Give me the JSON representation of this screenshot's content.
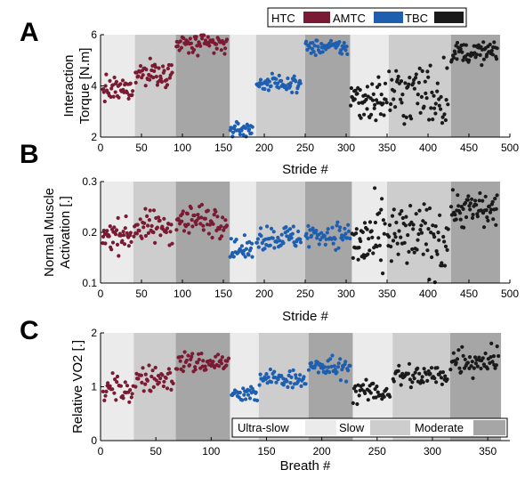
{
  "legend_top": {
    "items": [
      {
        "label": "HTC",
        "color": "#7a1a33"
      },
      {
        "label": "AMTC",
        "color": "#1f5fb0"
      },
      {
        "label": "TBC",
        "color": "#1a1a1a"
      }
    ]
  },
  "legend_bottom": {
    "items": [
      {
        "label": "Ultra-slow",
        "color": "#ebebeb"
      },
      {
        "label": "Slow",
        "color": "#cdcdcd"
      },
      {
        "label": "Moderate",
        "color": "#a6a6a6"
      }
    ]
  },
  "chart_data": [
    {
      "panel": "A",
      "type": "scatter",
      "xlabel": "Stride #",
      "ylabel": [
        "Interaction",
        "Torque [N.m]"
      ],
      "xlim": [
        0,
        500
      ],
      "ylim": [
        2,
        6
      ],
      "xticks": [
        0,
        50,
        100,
        150,
        200,
        250,
        300,
        350,
        400,
        450,
        500
      ],
      "yticks": [
        2,
        4,
        6
      ],
      "bands": [
        {
          "x0": 0,
          "x1": 42,
          "speed": "Ultra-slow"
        },
        {
          "x0": 42,
          "x1": 92,
          "speed": "Slow"
        },
        {
          "x0": 92,
          "x1": 158,
          "speed": "Moderate"
        },
        {
          "x0": 158,
          "x1": 190,
          "speed": "Ultra-slow"
        },
        {
          "x0": 190,
          "x1": 250,
          "speed": "Slow"
        },
        {
          "x0": 250,
          "x1": 305,
          "speed": "Moderate"
        },
        {
          "x0": 305,
          "x1": 352,
          "speed": "Ultra-slow"
        },
        {
          "x0": 352,
          "x1": 428,
          "speed": "Slow"
        },
        {
          "x0": 428,
          "x1": 488,
          "speed": "Moderate"
        }
      ],
      "series": [
        {
          "name": "HTC",
          "color": "#7a1a33",
          "segments": [
            {
              "x0": 2,
              "x1": 40,
              "mean": 3.85,
              "spread": 0.22,
              "n": 42
            },
            {
              "x0": 42,
              "x1": 88,
              "mean": 4.5,
              "spread": 0.25,
              "n": 48
            },
            {
              "x0": 92,
              "x1": 155,
              "mean": 5.6,
              "spread": 0.22,
              "n": 62
            }
          ]
        },
        {
          "name": "AMTC",
          "color": "#1f5fb0",
          "segments": [
            {
              "x0": 158,
              "x1": 186,
              "mean": 2.3,
              "spread": 0.15,
              "n": 30
            },
            {
              "x0": 190,
              "x1": 245,
              "mean": 4.1,
              "spread": 0.15,
              "n": 55
            },
            {
              "x0": 250,
              "x1": 302,
              "mean": 5.5,
              "spread": 0.15,
              "n": 52
            }
          ]
        },
        {
          "name": "TBC",
          "color": "#1a1a1a",
          "segments": [
            {
              "x0": 305,
              "x1": 350,
              "mean": 3.5,
              "spread": 0.45,
              "n": 50
            },
            {
              "x0": 352,
              "x1": 425,
              "mean": 3.7,
              "spread": 0.65,
              "n": 70
            },
            {
              "x0": 428,
              "x1": 485,
              "mean": 5.3,
              "spread": 0.2,
              "n": 60
            }
          ]
        }
      ]
    },
    {
      "panel": "B",
      "type": "scatter",
      "xlabel": "Stride #",
      "ylabel": [
        "Normal Muscle",
        "Activation [.]"
      ],
      "xlim": [
        0,
        500
      ],
      "ylim": [
        0.1,
        0.3
      ],
      "xticks": [
        0,
        50,
        100,
        150,
        200,
        250,
        300,
        350,
        400,
        450,
        500
      ],
      "yticks": [
        0.1,
        0.2,
        0.3
      ],
      "bands": [
        {
          "x0": 0,
          "x1": 40,
          "speed": "Ultra-slow"
        },
        {
          "x0": 40,
          "x1": 92,
          "speed": "Slow"
        },
        {
          "x0": 92,
          "x1": 158,
          "speed": "Moderate"
        },
        {
          "x0": 158,
          "x1": 190,
          "speed": "Ultra-slow"
        },
        {
          "x0": 190,
          "x1": 250,
          "speed": "Slow"
        },
        {
          "x0": 250,
          "x1": 307,
          "speed": "Moderate"
        },
        {
          "x0": 307,
          "x1": 350,
          "speed": "Ultra-slow"
        },
        {
          "x0": 350,
          "x1": 428,
          "speed": "Slow"
        },
        {
          "x0": 428,
          "x1": 488,
          "speed": "Moderate"
        }
      ],
      "series": [
        {
          "name": "HTC",
          "color": "#7a1a33",
          "segments": [
            {
              "x0": 2,
              "x1": 38,
              "mean": 0.195,
              "spread": 0.015,
              "n": 40
            },
            {
              "x0": 40,
              "x1": 88,
              "mean": 0.21,
              "spread": 0.016,
              "n": 48
            },
            {
              "x0": 92,
              "x1": 155,
              "mean": 0.225,
              "spread": 0.016,
              "n": 60
            }
          ]
        },
        {
          "name": "AMTC",
          "color": "#1f5fb0",
          "segments": [
            {
              "x0": 158,
              "x1": 186,
              "mean": 0.165,
              "spread": 0.01,
              "n": 30
            },
            {
              "x0": 190,
              "x1": 245,
              "mean": 0.19,
              "spread": 0.012,
              "n": 55
            },
            {
              "x0": 250,
              "x1": 305,
              "mean": 0.195,
              "spread": 0.012,
              "n": 52
            }
          ]
        },
        {
          "name": "TBC",
          "color": "#1a1a1a",
          "segments": [
            {
              "x0": 307,
              "x1": 348,
              "mean": 0.18,
              "spread": 0.035,
              "n": 45
            },
            {
              "x0": 350,
              "x1": 425,
              "mean": 0.19,
              "spread": 0.035,
              "n": 75
            },
            {
              "x0": 428,
              "x1": 485,
              "mean": 0.245,
              "spread": 0.018,
              "n": 60
            }
          ]
        }
      ]
    },
    {
      "panel": "C",
      "type": "scatter",
      "xlabel": "Breath #",
      "ylabel": [
        "Relative VO2 [.]"
      ],
      "xlim": [
        0,
        370
      ],
      "ylim": [
        0,
        2
      ],
      "xticks": [
        0,
        50,
        100,
        150,
        200,
        250,
        300,
        350
      ],
      "yticks": [
        0,
        1,
        2
      ],
      "bands": [
        {
          "x0": 0,
          "x1": 30,
          "speed": "Ultra-slow"
        },
        {
          "x0": 30,
          "x1": 68,
          "speed": "Slow"
        },
        {
          "x0": 68,
          "x1": 117,
          "speed": "Moderate"
        },
        {
          "x0": 117,
          "x1": 143,
          "speed": "Ultra-slow"
        },
        {
          "x0": 143,
          "x1": 188,
          "speed": "Slow"
        },
        {
          "x0": 188,
          "x1": 228,
          "speed": "Moderate"
        },
        {
          "x0": 228,
          "x1": 264,
          "speed": "Ultra-slow"
        },
        {
          "x0": 264,
          "x1": 316,
          "speed": "Slow"
        },
        {
          "x0": 316,
          "x1": 362,
          "speed": "Moderate"
        }
      ],
      "series": [
        {
          "name": "HTC",
          "color": "#7a1a33",
          "segments": [
            {
              "x0": 2,
              "x1": 30,
              "mean": 0.95,
              "spread": 0.13,
              "n": 32
            },
            {
              "x0": 31,
              "x1": 66,
              "mean": 1.15,
              "spread": 0.12,
              "n": 40
            },
            {
              "x0": 68,
              "x1": 116,
              "mean": 1.45,
              "spread": 0.1,
              "n": 55
            }
          ]
        },
        {
          "name": "AMTC",
          "color": "#1f5fb0",
          "segments": [
            {
              "x0": 118,
              "x1": 142,
              "mean": 0.85,
              "spread": 0.08,
              "n": 30
            },
            {
              "x0": 143,
              "x1": 186,
              "mean": 1.15,
              "spread": 0.08,
              "n": 50
            },
            {
              "x0": 188,
              "x1": 226,
              "mean": 1.35,
              "spread": 0.1,
              "n": 45
            }
          ]
        },
        {
          "name": "TBC",
          "color": "#1a1a1a",
          "segments": [
            {
              "x0": 228,
              "x1": 262,
              "mean": 0.9,
              "spread": 0.1,
              "n": 38
            },
            {
              "x0": 264,
              "x1": 314,
              "mean": 1.2,
              "spread": 0.12,
              "n": 55
            },
            {
              "x0": 316,
              "x1": 360,
              "mean": 1.5,
              "spread": 0.15,
              "n": 50
            }
          ]
        }
      ]
    }
  ],
  "panels": [
    {
      "letter": "A"
    },
    {
      "letter": "B"
    },
    {
      "letter": "C"
    }
  ]
}
